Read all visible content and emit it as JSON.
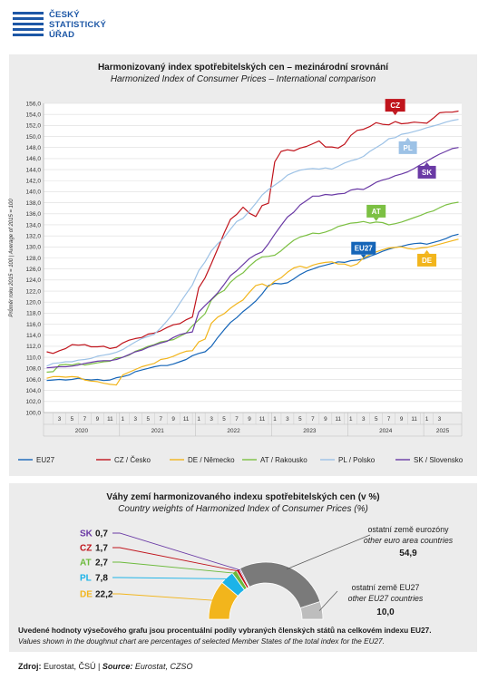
{
  "logo": {
    "line1": "ČESKÝ",
    "line2": "STATISTICKÝ",
    "line3": "ÚŘAD"
  },
  "chart_data": [
    {
      "type": "line",
      "title": "Harmonizovaný index spotřebitelských cen – mezinárodní srovnání",
      "subtitle": "Harmonized Index of Consumer Prices – International comparison",
      "ylabel": "Průměr roku 2015 = 100 | Average of 2015 = 100",
      "ylim": [
        100,
        156
      ],
      "yticks": [
        "100,0",
        "102,0",
        "104,0",
        "106,0",
        "108,0",
        "110,0",
        "112,0",
        "114,0",
        "116,0",
        "118,0",
        "120,0",
        "122,0",
        "124,0",
        "126,0",
        "128,0",
        "130,0",
        "132,0",
        "134,0",
        "136,0",
        "138,0",
        "140,0",
        "142,0",
        "144,0",
        "146,0",
        "148,0",
        "150,0",
        "152,0",
        "154,0",
        "156,0"
      ],
      "month_ticks": [
        "3",
        "5",
        "7",
        "9",
        "11",
        "1",
        "3",
        "5",
        "7",
        "9",
        "11",
        "1",
        "3",
        "5",
        "7",
        "9",
        "11",
        "1",
        "3",
        "5",
        "7",
        "9",
        "11",
        "1",
        "3",
        "5",
        "7",
        "9",
        "11",
        "1",
        "3"
      ],
      "year_labels": [
        "2020",
        "2021",
        "2022",
        "2023",
        "2024",
        "2025"
      ],
      "x_start": "2020-01",
      "x_end": "2025-03",
      "series": [
        {
          "name": "EU27",
          "label": "EU27",
          "color": "#1565b8",
          "values": [
            105.8,
            105.9,
            106.0,
            105.9,
            106.0,
            106.2,
            106.0,
            105.9,
            106.0,
            105.8,
            105.9,
            106.3,
            106.5,
            106.8,
            107.4,
            107.7,
            108.0,
            108.3,
            108.5,
            108.5,
            108.8,
            109.2,
            109.6,
            110.3,
            110.7,
            111.0,
            112.0,
            113.6,
            115.0,
            116.3,
            117.2,
            118.3,
            119.2,
            120.2,
            121.5,
            123.0,
            123.4,
            123.3,
            123.5,
            124.2,
            125.0,
            125.6,
            126.0,
            126.4,
            126.7,
            127.0,
            127.3,
            127.2,
            127.5,
            127.6,
            127.8,
            128.3,
            128.7,
            129.2,
            129.6,
            129.9,
            130.1,
            130.4,
            130.6,
            130.7,
            130.5,
            130.8,
            131.1,
            131.5,
            132.0,
            132.3
          ]
        },
        {
          "name": "CZ / Česko",
          "label": "CZ",
          "color": "#c0141c",
          "values": [
            111.0,
            110.7,
            111.2,
            111.6,
            112.3,
            112.2,
            112.3,
            111.9,
            111.9,
            112.0,
            111.6,
            111.8,
            112.6,
            113.1,
            113.4,
            113.6,
            114.2,
            114.4,
            114.8,
            115.4,
            115.9,
            116.1,
            116.8,
            117.3,
            122.6,
            124.4,
            127.0,
            129.7,
            132.5,
            135.0,
            135.9,
            137.2,
            136.1,
            135.5,
            137.5,
            137.9,
            145.4,
            147.3,
            147.6,
            147.4,
            147.9,
            148.2,
            148.7,
            149.2,
            148.1,
            148.1,
            147.9,
            148.6,
            150.2,
            151.1,
            151.3,
            151.8,
            152.5,
            152.2,
            152.1,
            152.7,
            152.3,
            152.4,
            152.6,
            152.5,
            152.4,
            153.3,
            154.3,
            154.4,
            154.4,
            154.6
          ]
        },
        {
          "name": "DE / Německo",
          "label": "DE",
          "color": "#f2b51c",
          "values": [
            106.2,
            106.5,
            106.5,
            106.4,
            106.5,
            106.4,
            105.9,
            105.7,
            105.6,
            105.3,
            105.1,
            105.0,
            106.8,
            107.3,
            107.8,
            108.3,
            108.6,
            108.9,
            109.6,
            109.8,
            110.2,
            110.7,
            111.1,
            111.2,
            112.8,
            113.3,
            116.2,
            117.3,
            117.9,
            118.9,
            119.7,
            120.4,
            121.8,
            123.0,
            123.3,
            122.8,
            123.8,
            124.4,
            125.4,
            126.2,
            126.5,
            126.2,
            126.7,
            127.0,
            127.2,
            127.3,
            126.9,
            126.9,
            126.5,
            126.9,
            128.0,
            128.6,
            129.1,
            129.5,
            129.8,
            129.9,
            130.0,
            129.7,
            129.6,
            129.8,
            129.9,
            130.2,
            130.5,
            130.8,
            131.1,
            131.4
          ]
        },
        {
          "name": "AT / Rakousko",
          "label": "AT",
          "color": "#7cc043",
          "values": [
            107.3,
            107.4,
            108.6,
            108.7,
            108.6,
            108.9,
            108.6,
            108.8,
            109.0,
            109.2,
            109.3,
            109.9,
            110.0,
            110.4,
            111.1,
            111.5,
            112.0,
            112.3,
            112.8,
            113.0,
            113.2,
            113.8,
            114.4,
            115.7,
            116.8,
            117.9,
            120.4,
            121.5,
            122.1,
            123.6,
            124.6,
            125.3,
            126.5,
            127.5,
            128.2,
            128.3,
            128.5,
            129.3,
            130.3,
            131.2,
            131.8,
            132.1,
            132.5,
            132.4,
            132.7,
            133.1,
            133.7,
            134.0,
            134.3,
            134.4,
            134.6,
            134.3,
            134.5,
            134.4,
            134.0,
            134.2,
            134.5,
            134.9,
            135.3,
            135.7,
            136.2,
            136.5,
            137.1,
            137.6,
            137.9,
            138.1
          ]
        },
        {
          "name": "PL / Polsko",
          "label": "PL",
          "color": "#9dc2e6",
          "values": [
            108.4,
            108.9,
            109.0,
            109.2,
            109.2,
            109.5,
            109.6,
            109.8,
            110.2,
            110.4,
            110.6,
            110.9,
            111.4,
            112.1,
            112.8,
            113.4,
            113.8,
            114.2,
            115.3,
            116.6,
            118.0,
            119.8,
            121.5,
            123.1,
            125.7,
            127.3,
            129.3,
            130.6,
            131.7,
            133.2,
            134.6,
            135.2,
            136.5,
            137.9,
            139.4,
            140.4,
            141.2,
            142.0,
            143.0,
            143.5,
            143.9,
            144.1,
            144.2,
            144.1,
            144.3,
            144.1,
            144.6,
            145.2,
            145.6,
            145.9,
            146.4,
            147.3,
            148.0,
            148.7,
            149.6,
            149.8,
            150.4,
            150.6,
            150.9,
            151.2,
            151.6,
            151.9,
            152.2,
            152.6,
            152.9,
            153.1
          ]
        },
        {
          "name": "SK / Slovensko",
          "label": "SK",
          "color": "#6a3aa5",
          "values": [
            108.1,
            108.2,
            108.3,
            108.3,
            108.4,
            108.6,
            108.9,
            109.1,
            109.3,
            109.4,
            109.4,
            109.6,
            110.0,
            110.5,
            111.0,
            111.3,
            111.8,
            112.2,
            112.6,
            112.9,
            113.6,
            114.1,
            114.4,
            114.6,
            118.2,
            119.4,
            120.5,
            121.7,
            123.2,
            124.8,
            125.7,
            126.8,
            127.9,
            128.6,
            129.1,
            130.6,
            132.3,
            133.9,
            135.4,
            136.3,
            137.6,
            138.4,
            139.2,
            139.2,
            139.5,
            139.4,
            139.6,
            139.7,
            140.3,
            140.5,
            140.4,
            141.0,
            141.7,
            142.1,
            142.4,
            142.9,
            143.2,
            143.6,
            144.2,
            144.9,
            145.5,
            146.2,
            146.8,
            147.3,
            147.8,
            148.0
          ]
        }
      ],
      "legend": {
        "placement": "bottom",
        "items": [
          "EU27",
          "CZ / Česko",
          "DE / Německo",
          "AT / Rakousko",
          "PL / Polsko",
          "SK / Slovensko"
        ]
      }
    },
    {
      "type": "pie",
      "style": "half-doughnut",
      "title": "Váhy zemí harmonizovaného indexu spotřebitelských cen (v %)",
      "subtitle": "Country weights of Harmonized Index of Consumer Prices (%)",
      "slices": [
        {
          "code": "DE",
          "value": 22.2,
          "display": "22,2",
          "color": "#f2b51c"
        },
        {
          "code": "PL",
          "value": 7.8,
          "display": "7,8",
          "color": "#1cb3e8"
        },
        {
          "code": "AT",
          "value": 2.7,
          "display": "2,7",
          "color": "#6cba3c"
        },
        {
          "code": "CZ",
          "value": 1.7,
          "display": "1,7",
          "color": "#c0141c"
        },
        {
          "code": "SK",
          "value": 0.7,
          "display": "0,7",
          "color": "#6a3aa5"
        },
        {
          "code": "OTH_EA",
          "value": 54.9,
          "display": "54,9",
          "label_cs": "ostatní země eurozóny",
          "label_en": "other euro area countries",
          "color": "#7a7a7a"
        },
        {
          "code": "OTH_EU",
          "value": 10.0,
          "display": "10,0",
          "label_cs": "ostatní země EU27",
          "label_en": "other EU27 countries",
          "color": "#bdbdbd"
        }
      ]
    }
  ],
  "notes": {
    "line1": "Uvedené hodnoty výsečového grafu jsou procentuální podíly vybraných členských států na celkovém indexu EU27.",
    "line2": "Values shown in the doughnut chart are percentages of selected Member States of the total index for the EU27."
  },
  "source": {
    "label": "Zdroj:",
    "cs": "Eurostat, ČSÚ |",
    "en_label": "Source:",
    "en": "Eurostat, CZSO"
  }
}
